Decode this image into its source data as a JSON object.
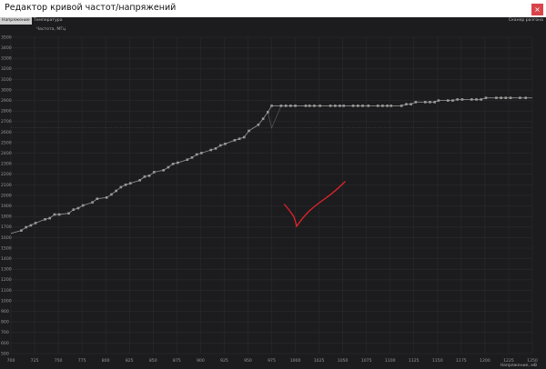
{
  "window": {
    "title": "Редактор кривой частот/напряжений",
    "close_label": "×"
  },
  "tabs": [
    {
      "label": "Напряжение",
      "selected": true
    },
    {
      "label": "Температура",
      "selected": false
    }
  ],
  "scanner_label": "Сканер разгона",
  "chart_data": {
    "type": "line",
    "xlabel": "Напряжение, мВ",
    "ylabel": "Частота, МГц",
    "xlim": [
      700,
      1250
    ],
    "ylim": [
      500,
      3500
    ],
    "x_ticks": [
      700,
      725,
      750,
      775,
      800,
      825,
      850,
      875,
      900,
      925,
      950,
      975,
      1000,
      1025,
      1050,
      1075,
      1100,
      1125,
      1150,
      1175,
      1200,
      1225,
      1250
    ],
    "y_ticks": [
      500,
      600,
      700,
      800,
      900,
      1000,
      1100,
      1200,
      1300,
      1400,
      1500,
      1600,
      1700,
      1800,
      1900,
      2000,
      2100,
      2200,
      2300,
      2400,
      2500,
      2600,
      2700,
      2800,
      2900,
      3000,
      3100,
      3200,
      3300,
      3400,
      3500
    ],
    "grid": true,
    "reference_frequency": 2640,
    "series": [
      {
        "points": [
          [
            700,
            1640
          ],
          [
            711,
            1667
          ],
          [
            716,
            1698
          ],
          [
            721,
            1716
          ],
          [
            726,
            1738
          ],
          [
            736,
            1773
          ],
          [
            741,
            1784
          ],
          [
            746,
            1819
          ],
          [
            751,
            1819
          ],
          [
            761,
            1830
          ],
          [
            766,
            1865
          ],
          [
            771,
            1879
          ],
          [
            776,
            1905
          ],
          [
            786,
            1934
          ],
          [
            791,
            1968
          ],
          [
            801,
            1980
          ],
          [
            806,
            2009
          ],
          [
            811,
            2043
          ],
          [
            816,
            2078
          ],
          [
            821,
            2101
          ],
          [
            826,
            2115
          ],
          [
            836,
            2144
          ],
          [
            841,
            2178
          ],
          [
            846,
            2187
          ],
          [
            851,
            2221
          ],
          [
            861,
            2239
          ],
          [
            866,
            2267
          ],
          [
            871,
            2299
          ],
          [
            876,
            2310
          ],
          [
            886,
            2339
          ],
          [
            891,
            2359
          ],
          [
            896,
            2388
          ],
          [
            901,
            2402
          ],
          [
            911,
            2431
          ],
          [
            916,
            2445
          ],
          [
            921,
            2474
          ],
          [
            926,
            2489
          ],
          [
            936,
            2523
          ],
          [
            941,
            2537
          ],
          [
            946,
            2552
          ],
          [
            951,
            2612
          ],
          [
            961,
            2670
          ],
          [
            966,
            2727
          ],
          [
            971,
            2790
          ],
          [
            975,
            2850
          ],
          [
            985,
            2850
          ],
          [
            990,
            2850
          ],
          [
            995,
            2850
          ],
          [
            1000,
            2850
          ],
          [
            1011,
            2850
          ],
          [
            1015,
            2850
          ],
          [
            1020,
            2850
          ],
          [
            1026,
            2850
          ],
          [
            1037,
            2850
          ],
          [
            1042,
            2850
          ],
          [
            1047,
            2850
          ],
          [
            1051,
            2850
          ],
          [
            1061,
            2850
          ],
          [
            1066,
            2850
          ],
          [
            1071,
            2850
          ],
          [
            1077,
            2850
          ],
          [
            1087,
            2850
          ],
          [
            1092,
            2850
          ],
          [
            1097,
            2850
          ],
          [
            1101,
            2850
          ],
          [
            1112,
            2850
          ],
          [
            1117,
            2865
          ],
          [
            1122,
            2865
          ],
          [
            1127,
            2885
          ],
          [
            1137,
            2885
          ],
          [
            1142,
            2885
          ],
          [
            1147,
            2885
          ],
          [
            1151,
            2900
          ],
          [
            1161,
            2900
          ],
          [
            1166,
            2900
          ],
          [
            1171,
            2910
          ],
          [
            1176,
            2910
          ],
          [
            1186,
            2910
          ],
          [
            1191,
            2910
          ],
          [
            1196,
            2910
          ],
          [
            1201,
            2925
          ],
          [
            1212,
            2925
          ],
          [
            1217,
            2925
          ],
          [
            1222,
            2925
          ],
          [
            1227,
            2925
          ],
          [
            1237,
            2925
          ],
          [
            1243,
            2925
          ],
          [
            1250,
            2925
          ]
        ]
      },
      {
        "points": [
          [
            971,
            2790
          ],
          [
            975,
            2640
          ],
          [
            985,
            2850
          ]
        ]
      }
    ]
  },
  "colors": {
    "background": "#1c1c1e",
    "grid": "#2b2b2e",
    "curve": "#8a8a8a",
    "annotation": "#e3222b",
    "close": "#d9444a"
  }
}
